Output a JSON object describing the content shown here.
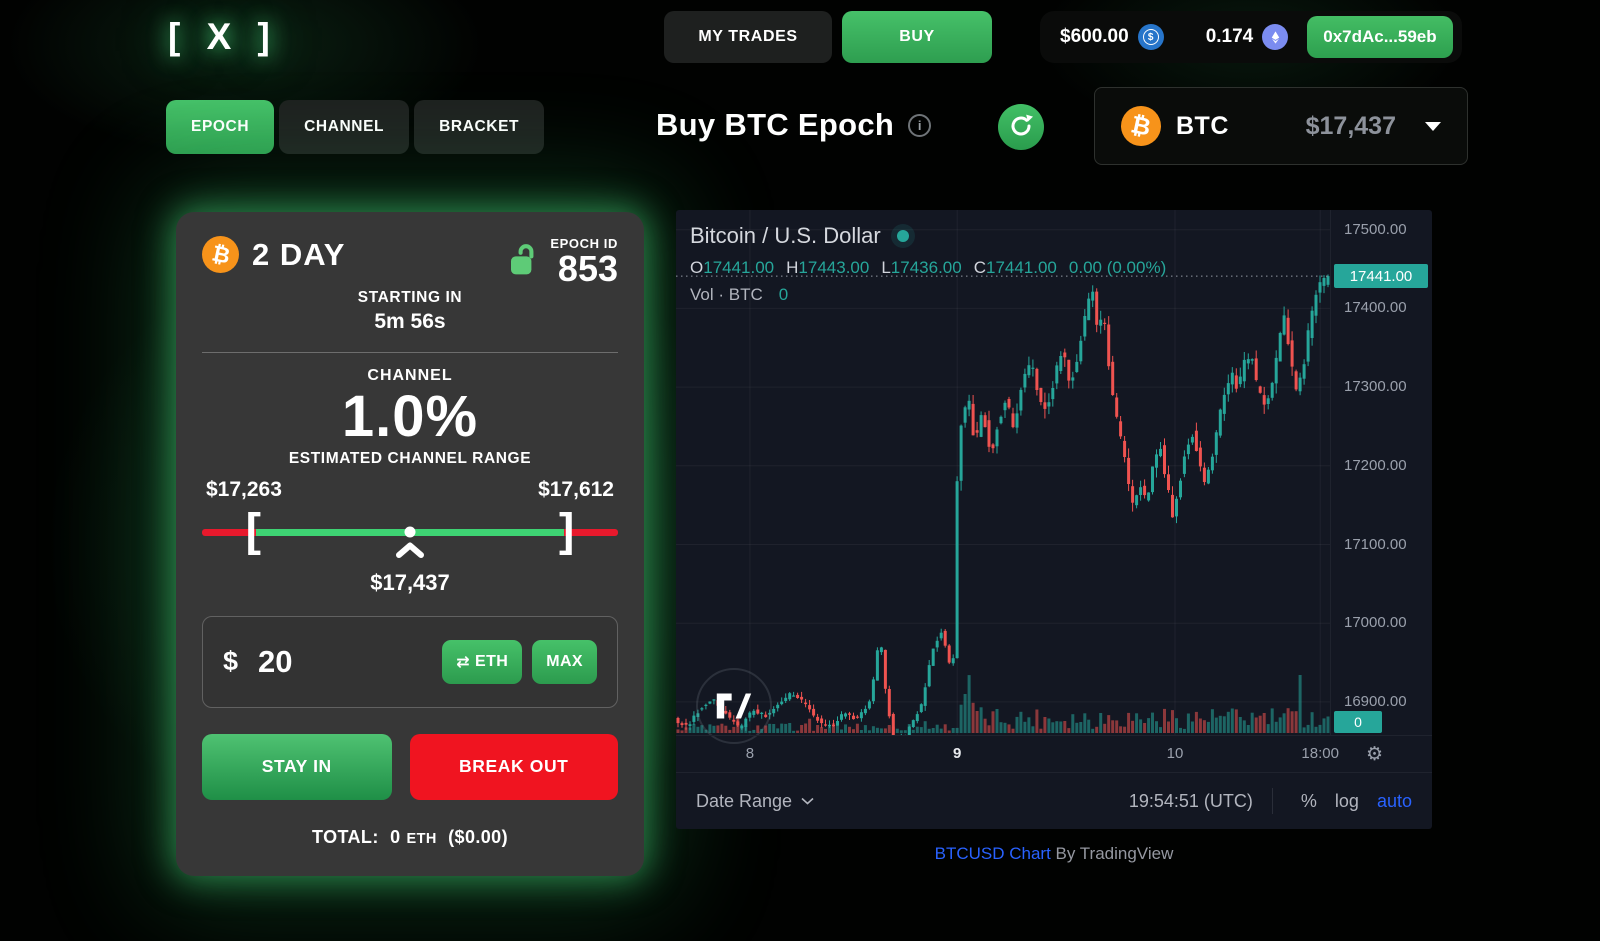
{
  "header": {
    "logo": "[ X ]",
    "my_trades": "MY TRADES",
    "buy": "BUY",
    "wallet": {
      "usd": "$600.00",
      "eth": "0.174",
      "address": "0x7dAc...59eb"
    }
  },
  "nav": {
    "tabs": [
      {
        "label": "EPOCH"
      },
      {
        "label": "CHANNEL"
      },
      {
        "label": "BRACKET"
      }
    ],
    "title": "Buy BTC Epoch",
    "asset": {
      "symbol": "BTC",
      "price": "$17,437"
    }
  },
  "icons": {
    "info": "i",
    "swap": "⇄",
    "gear": "⚙",
    "usdc_symbol": "$"
  },
  "panel": {
    "duration": "2 DAY",
    "epoch_id_label": "EPOCH ID",
    "epoch_id": "853",
    "starting_label": "STARTING IN",
    "starting_value": "5m 56s",
    "channel_label": "CHANNEL",
    "channel_pct": "1.0%",
    "range_label": "ESTIMATED CHANNEL RANGE",
    "range_low": "$17,263",
    "range_high": "$17,612",
    "bracket_left": "[",
    "bracket_right": "]",
    "current_price": "$17,437",
    "amount_symbol": "$",
    "amount_value": "20",
    "eth_button": "ETH",
    "max_button": "MAX",
    "stay_in": "STAY IN",
    "break_out": "BREAK OUT",
    "total_label": "TOTAL:",
    "total_value": "0",
    "total_unit": "ETH",
    "total_usd": "($0.00)"
  },
  "chart_data": {
    "type": "candlestick",
    "title": "Bitcoin / U.S. Dollar",
    "legend": {
      "o_key": "O",
      "o": "17441.00",
      "h_key": "H",
      "h": "17443.00",
      "l_key": "L",
      "l": "17436.00",
      "c_key": "C",
      "c": "17441.00",
      "change": "0.00 (0.00%)"
    },
    "volume_label": "Vol · BTC",
    "volume_value": "0",
    "volume_axis_label": "0",
    "current_price": 17441,
    "current_price_label": "17441.00",
    "y_domain": [
      16858,
      17525
    ],
    "y_ticks": [
      "17500.00",
      "17400.00",
      "17300.00",
      "17200.00",
      "17100.00",
      "17000.00",
      "16900.00"
    ],
    "y_tick_values": [
      17500,
      17400,
      17300,
      17200,
      17100,
      17000,
      16900
    ],
    "x_ticks": [
      {
        "label": "8",
        "pos": 0.113,
        "major": false
      },
      {
        "label": "9",
        "pos": 0.43,
        "major": true
      },
      {
        "label": "10",
        "pos": 0.763,
        "major": false
      },
      {
        "label": "18:00",
        "pos": 0.985,
        "major": false
      }
    ],
    "colors": {
      "up": "#26a69a",
      "down": "#ef5350",
      "grid": "rgba(255,255,255,0.05)",
      "price_line": "#9298a3"
    },
    "price_path": [
      [
        0,
        16878
      ],
      [
        0.02,
        16868
      ],
      [
        0.04,
        16892
      ],
      [
        0.06,
        16902
      ],
      [
        0.08,
        16884
      ],
      [
        0.1,
        16866
      ],
      [
        0.12,
        16890
      ],
      [
        0.14,
        16882
      ],
      [
        0.16,
        16898
      ],
      [
        0.18,
        16912
      ],
      [
        0.2,
        16898
      ],
      [
        0.22,
        16876
      ],
      [
        0.24,
        16868
      ],
      [
        0.26,
        16886
      ],
      [
        0.28,
        16878
      ],
      [
        0.3,
        16902
      ],
      [
        0.315,
        16986
      ],
      [
        0.325,
        16902
      ],
      [
        0.335,
        16856
      ],
      [
        0.35,
        16852
      ],
      [
        0.365,
        16874
      ],
      [
        0.38,
        16900
      ],
      [
        0.395,
        16966
      ],
      [
        0.41,
        16992
      ],
      [
        0.422,
        16944
      ],
      [
        0.428,
        16956
      ],
      [
        0.433,
        17182
      ],
      [
        0.44,
        17262
      ],
      [
        0.45,
        17290
      ],
      [
        0.46,
        17226
      ],
      [
        0.472,
        17272
      ],
      [
        0.484,
        17212
      ],
      [
        0.496,
        17258
      ],
      [
        0.508,
        17284
      ],
      [
        0.52,
        17248
      ],
      [
        0.532,
        17302
      ],
      [
        0.545,
        17334
      ],
      [
        0.558,
        17288
      ],
      [
        0.57,
        17268
      ],
      [
        0.582,
        17314
      ],
      [
        0.594,
        17348
      ],
      [
        0.606,
        17302
      ],
      [
        0.618,
        17344
      ],
      [
        0.63,
        17398
      ],
      [
        0.64,
        17424
      ],
      [
        0.648,
        17368
      ],
      [
        0.656,
        17396
      ],
      [
        0.664,
        17336
      ],
      [
        0.672,
        17280
      ],
      [
        0.682,
        17240
      ],
      [
        0.692,
        17192
      ],
      [
        0.702,
        17146
      ],
      [
        0.712,
        17178
      ],
      [
        0.722,
        17152
      ],
      [
        0.732,
        17196
      ],
      [
        0.742,
        17232
      ],
      [
        0.752,
        17184
      ],
      [
        0.762,
        17136
      ],
      [
        0.772,
        17176
      ],
      [
        0.782,
        17218
      ],
      [
        0.792,
        17244
      ],
      [
        0.802,
        17206
      ],
      [
        0.812,
        17178
      ],
      [
        0.822,
        17204
      ],
      [
        0.832,
        17254
      ],
      [
        0.842,
        17296
      ],
      [
        0.852,
        17318
      ],
      [
        0.862,
        17296
      ],
      [
        0.872,
        17330
      ],
      [
        0.882,
        17342
      ],
      [
        0.892,
        17298
      ],
      [
        0.902,
        17278
      ],
      [
        0.912,
        17294
      ],
      [
        0.922,
        17340
      ],
      [
        0.932,
        17398
      ],
      [
        0.94,
        17352
      ],
      [
        0.95,
        17294
      ],
      [
        0.96,
        17314
      ],
      [
        0.97,
        17370
      ],
      [
        0.98,
        17414
      ],
      [
        0.99,
        17436
      ],
      [
        1,
        17441
      ]
    ]
  },
  "chart_footer": {
    "date_range": "Date Range",
    "time": "19:54:51 (UTC)",
    "percent": "%",
    "log": "log",
    "auto": "auto"
  },
  "attribution": {
    "link": "BTCUSD Chart",
    "rest": "By TradingView"
  }
}
